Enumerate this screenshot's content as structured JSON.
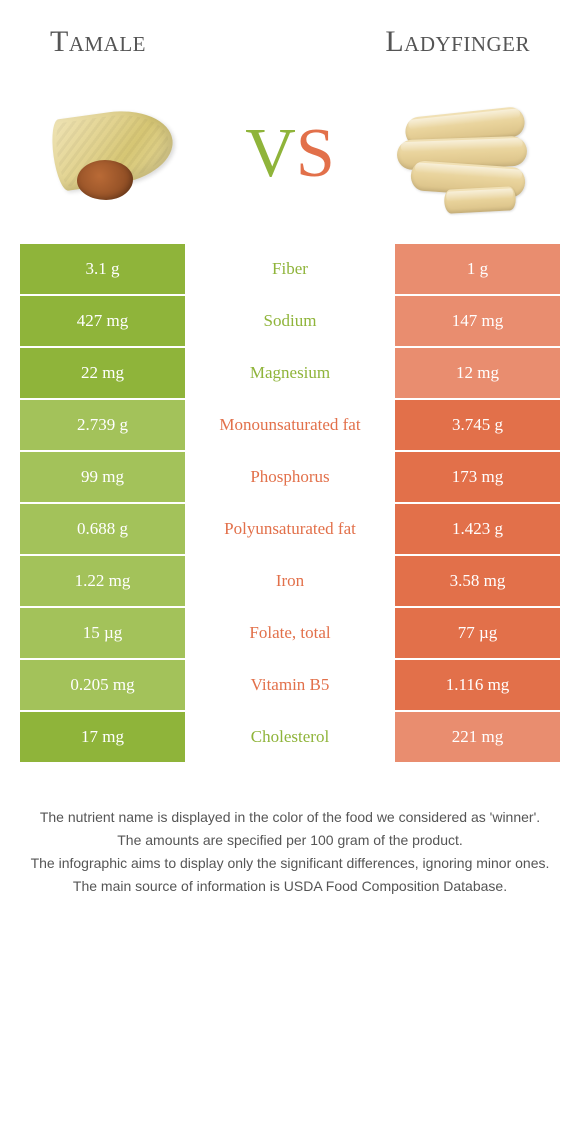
{
  "header": {
    "left_title": "Tamale",
    "right_title": "Ladyfinger",
    "vs_v": "V",
    "vs_s": "S"
  },
  "colors": {
    "green": "#8fb43a",
    "green_pale": "#a3c25a",
    "orange": "#e2704a",
    "orange_pale": "#e98d6f",
    "white": "#ffffff",
    "text_gray": "#555555"
  },
  "table": {
    "rows": [
      {
        "left": "3.1 g",
        "label": "Fiber",
        "right": "1 g",
        "winner": "left"
      },
      {
        "left": "427 mg",
        "label": "Sodium",
        "right": "147 mg",
        "winner": "left"
      },
      {
        "left": "22 mg",
        "label": "Magnesium",
        "right": "12 mg",
        "winner": "left"
      },
      {
        "left": "2.739 g",
        "label": "Monounsaturated fat",
        "right": "3.745 g",
        "winner": "right"
      },
      {
        "left": "99 mg",
        "label": "Phosphorus",
        "right": "173 mg",
        "winner": "right"
      },
      {
        "left": "0.688 g",
        "label": "Polyunsaturated fat",
        "right": "1.423 g",
        "winner": "right"
      },
      {
        "left": "1.22 mg",
        "label": "Iron",
        "right": "3.58 mg",
        "winner": "right"
      },
      {
        "left": "15 µg",
        "label": "Folate, total",
        "right": "77 µg",
        "winner": "right"
      },
      {
        "left": "0.205 mg",
        "label": "Vitamin B5",
        "right": "1.116 mg",
        "winner": "right"
      },
      {
        "left": "17 mg",
        "label": "Cholesterol",
        "right": "221 mg",
        "winner": "left"
      }
    ]
  },
  "footer": {
    "line1": "The nutrient name is displayed in the color of the food we considered as 'winner'.",
    "line2": "The amounts are specified per 100 gram of the product.",
    "line3": "The infographic aims to display only the significant differences, ignoring minor ones.",
    "line4": "The main source of information is USDA Food Composition Database."
  }
}
